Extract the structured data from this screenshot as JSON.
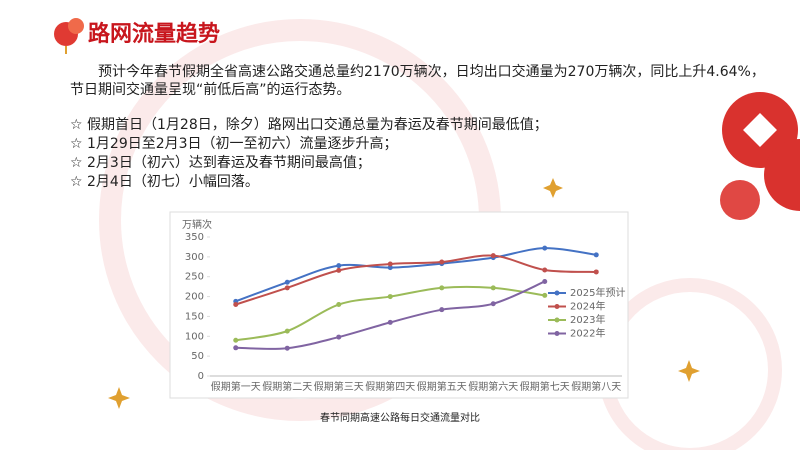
{
  "title": "路网流量趋势",
  "paragraph": "预计今年春节假期全省高速公路交通总量约2170万辆次，日均出口交通量为270万辆次，同比上升4.64%，节日期间交通量呈现“前低后高”的运行态势。",
  "bullets": [
    "☆ 假期首日（1月28日，除夕）路网出口交通总量为春运及春节期间最低值；",
    "☆ 1月29日至2月3日（初一至初六）流量逐步升高；",
    "☆ 2月3日（初六）达到春运及春节期间最高值；",
    "☆ 2月4日（初七）小幅回落。"
  ],
  "chart_data": {
    "type": "line",
    "caption": "春节同期高速公路每日交通流量对比",
    "y_label": "万辆次",
    "categories": [
      "假期第一天",
      "假期第二天",
      "假期第三天",
      "假期第四天",
      "假期第五天",
      "假期第六天",
      "假期第七天",
      "假期第八天"
    ],
    "series": [
      {
        "name": "2025年预计",
        "color": "#4472c4",
        "values": [
          188,
          236,
          278,
          273,
          283,
          298,
          322,
          305
        ]
      },
      {
        "name": "2024年",
        "color": "#c0504d",
        "values": [
          180,
          222,
          266,
          282,
          287,
          303,
          267,
          262
        ]
      },
      {
        "name": "2023年",
        "color": "#9bbb59",
        "values": [
          90,
          113,
          180,
          200,
          222,
          222,
          203,
          null
        ]
      },
      {
        "name": "2022年",
        "color": "#8064a2",
        "values": [
          71,
          70,
          98,
          135,
          167,
          182,
          238,
          null
        ]
      }
    ],
    "ylim": [
      0,
      350
    ],
    "yticks": [
      0,
      50,
      100,
      150,
      200,
      250,
      300,
      350
    ],
    "grid": false,
    "legend": "right"
  }
}
